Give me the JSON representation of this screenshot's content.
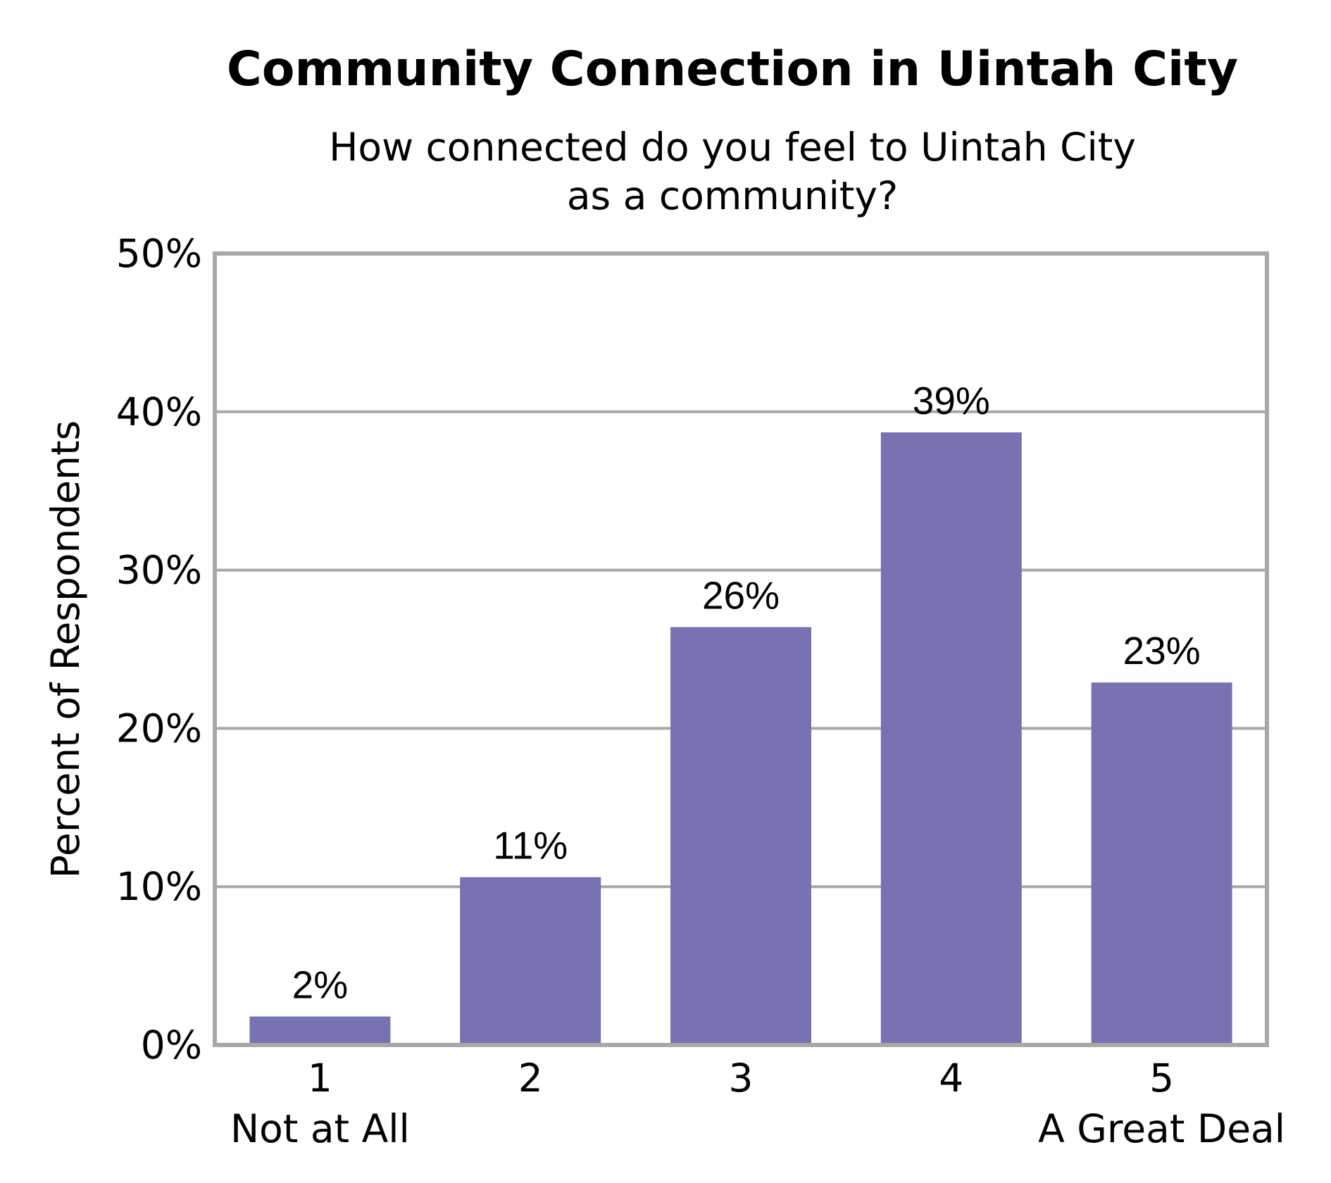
{
  "chart_data": {
    "type": "bar",
    "title": "Community Connection in Uintah City",
    "subtitle_lines": [
      "How connected do you feel to Uintah City",
      "as a community?"
    ],
    "ylabel": "Percent of Respondents",
    "xlabel": "",
    "categories": [
      "1",
      "2",
      "3",
      "4",
      "5"
    ],
    "category_sublabels": [
      "Not at All",
      "",
      "",
      "",
      "A Great Deal"
    ],
    "values": [
      1.8,
      10.6,
      26.4,
      38.7,
      22.9
    ],
    "data_labels": [
      "2%",
      "11%",
      "26%",
      "39%",
      "23%"
    ],
    "ylim": [
      0,
      50
    ],
    "yticks": [
      0,
      10,
      20,
      30,
      40,
      50
    ],
    "ytick_labels": [
      "0%",
      "10%",
      "20%",
      "30%",
      "40%",
      "50%"
    ],
    "grid": true,
    "bar_color": "#7772b1",
    "gridline_color": "#a8a8a8"
  }
}
